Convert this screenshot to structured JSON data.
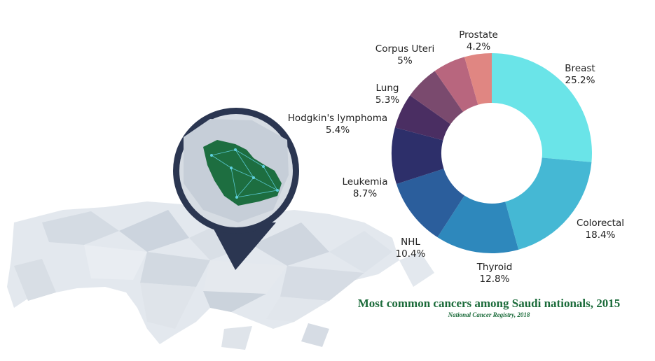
{
  "chart_data": {
    "type": "pie",
    "title": "Most common cancers among Saudi nationals, 2015",
    "subtitle": "National Cancer Registry, 2018",
    "labels": [
      "Breast",
      "Colorectal",
      "Thyroid",
      "NHL",
      "Leukemia",
      "Hodgkin's lymphoma",
      "Lung",
      "Corpus Uteri",
      "Prostate"
    ],
    "values": [
      25.2,
      18.4,
      12.8,
      10.4,
      8.7,
      5.4,
      5.3,
      5,
      4.2
    ],
    "value_labels": [
      "25.2%",
      "18.4%",
      "12.8%",
      "10.4%",
      "8.7%",
      "5.4%",
      "5.3%",
      "5%",
      "4.2%"
    ],
    "colors": [
      "#6ae4e8",
      "#45b8d4",
      "#2e88bc",
      "#2b5e9c",
      "#2d2f6a",
      "#4a2e62",
      "#7a4a6e",
      "#b8667e",
      "#e08682",
      "#f79a72"
    ],
    "donut": true
  }
}
